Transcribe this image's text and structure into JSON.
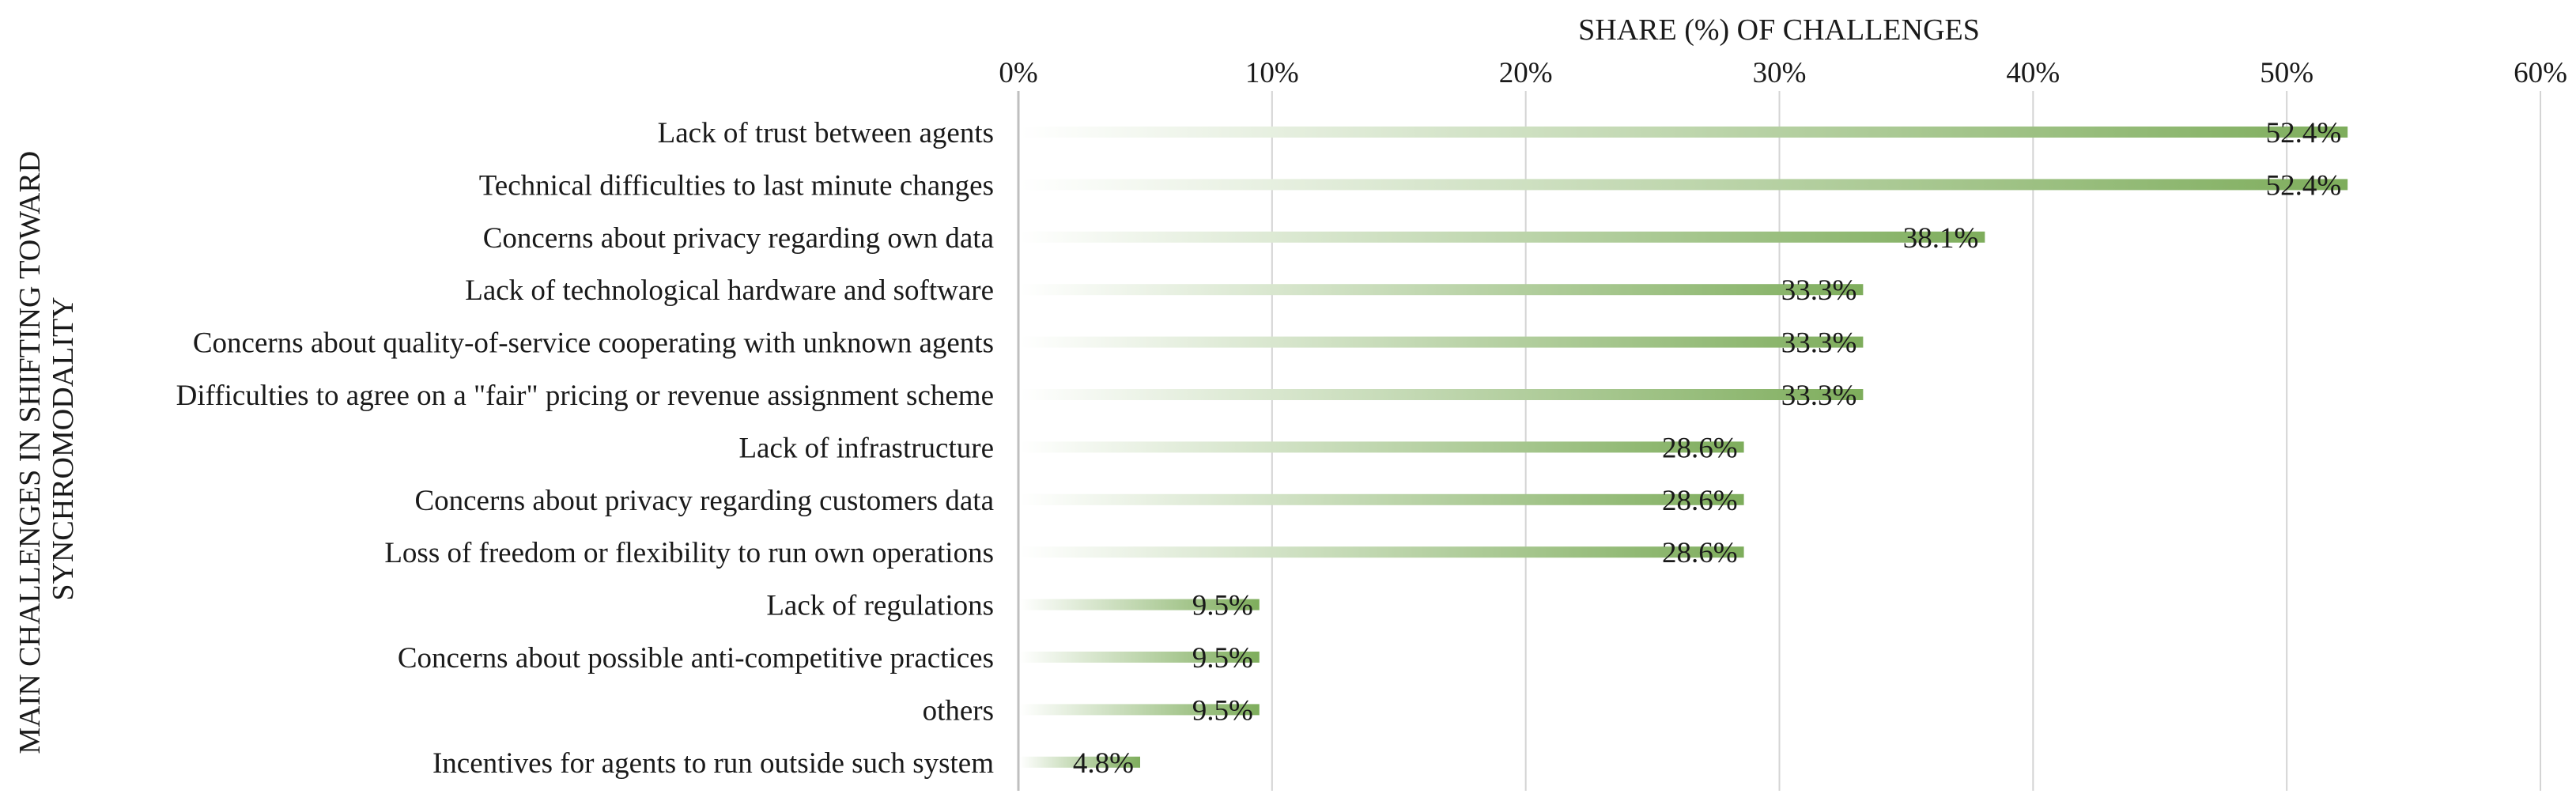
{
  "chart_data": {
    "type": "bar",
    "orientation": "horizontal",
    "title": "SHARE (%) OF CHALLENGES",
    "xlabel": "SHARE (%) OF CHALLENGES",
    "ylabel": "MAIN CHALLENGES IN SHIFTING TOWARD SYNCHROMODALITY",
    "ylabel_lines": [
      "MAIN CHALLENGES IN SHIFTING TOWARD",
      "SYNCHROMODALITY"
    ],
    "xlim": [
      0,
      60
    ],
    "xticks": [
      0,
      10,
      20,
      30,
      40,
      50,
      60
    ],
    "xtick_labels": [
      "0%",
      "10%",
      "20%",
      "30%",
      "40%",
      "50%",
      "60%"
    ],
    "categories": [
      "Lack of trust between agents",
      "Technical difficulties to last minute changes",
      "Concerns about privacy regarding own data",
      "Lack of technological hardware and software",
      "Concerns about quality-of-service cooperating with unknown agents",
      "Difficulties to agree on a \"fair\" pricing or revenue assignment scheme",
      "Lack of infrastructure",
      "Concerns about privacy regarding customers data",
      "Loss of freedom or flexibility to run own operations",
      "Lack of regulations",
      "Concerns about possible anti-competitive practices",
      "others",
      "Incentives for agents to run outside such system"
    ],
    "values": [
      52.4,
      52.4,
      38.1,
      33.3,
      33.3,
      33.3,
      28.6,
      28.6,
      28.6,
      9.5,
      9.5,
      9.5,
      4.8
    ],
    "data_labels": [
      "52.4%",
      "52.4%",
      "38.1%",
      "33.3%",
      "33.3%",
      "33.3%",
      "28.6%",
      "28.6%",
      "28.6%",
      "9.5%",
      "9.5%",
      "9.5%",
      "4.8%"
    ],
    "grid": true,
    "legend": "none",
    "colors": {
      "bar_start": "#ffffff",
      "bar_end": "#7ead5c",
      "grid": "#d4d4d4",
      "text": "#1a1a1a"
    }
  }
}
